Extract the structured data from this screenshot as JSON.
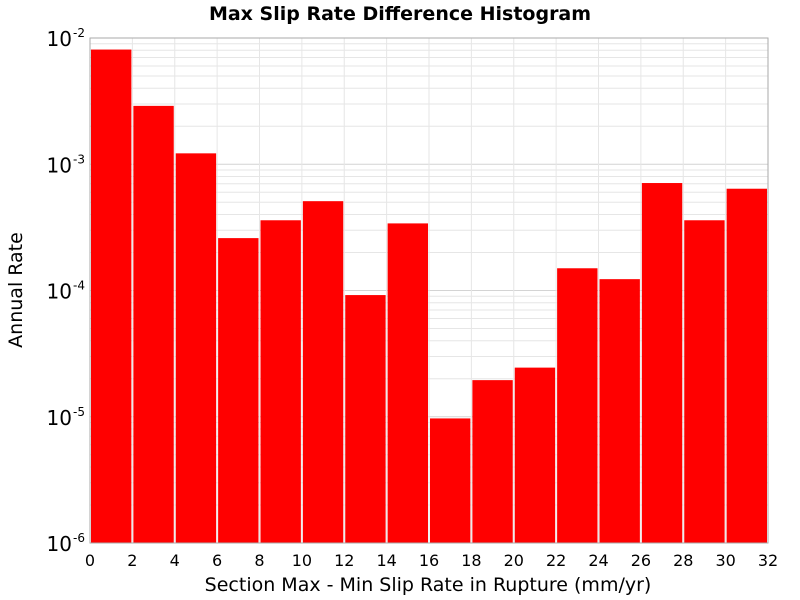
{
  "chart_data": {
    "type": "bar",
    "title": "Max Slip Rate Difference Histogram",
    "xlabel": "Section Max - Min Slip Rate in Rupture (mm/yr)",
    "ylabel": "Annual Rate",
    "x_scale": "linear",
    "y_scale": "log",
    "xlim": [
      0,
      32
    ],
    "ylim": [
      1e-06,
      0.01
    ],
    "grid": true,
    "bar_color": "#ff0000",
    "bin_width": 2,
    "bins": [
      {
        "x0": 0,
        "x1": 2,
        "value": 0.0081
      },
      {
        "x0": 2,
        "x1": 4,
        "value": 0.0029
      },
      {
        "x0": 4,
        "x1": 6,
        "value": 0.00122
      },
      {
        "x0": 6,
        "x1": 8,
        "value": 0.00026
      },
      {
        "x0": 8,
        "x1": 10,
        "value": 0.00036
      },
      {
        "x0": 10,
        "x1": 12,
        "value": 0.00051
      },
      {
        "x0": 12,
        "x1": 14,
        "value": 9.2e-05
      },
      {
        "x0": 14,
        "x1": 16,
        "value": 0.00034
      },
      {
        "x0": 16,
        "x1": 18,
        "value": 9.7e-06
      },
      {
        "x0": 18,
        "x1": 20,
        "value": 1.95e-05
      },
      {
        "x0": 20,
        "x1": 22,
        "value": 2.45e-05
      },
      {
        "x0": 22,
        "x1": 24,
        "value": 0.00015
      },
      {
        "x0": 24,
        "x1": 26,
        "value": 0.000123
      },
      {
        "x0": 26,
        "x1": 28,
        "value": 0.00071
      },
      {
        "x0": 28,
        "x1": 30,
        "value": 0.00036
      },
      {
        "x0": 30,
        "x1": 32,
        "value": 0.00064
      }
    ],
    "x_ticks": [
      "0",
      "2",
      "4",
      "6",
      "8",
      "10",
      "12",
      "14",
      "16",
      "18",
      "20",
      "22",
      "24",
      "26",
      "28",
      "30",
      "32"
    ],
    "y_ticks": [
      {
        "base": "10",
        "exp": "-6"
      },
      {
        "base": "10",
        "exp": "-5"
      },
      {
        "base": "10",
        "exp": "-4"
      },
      {
        "base": "10",
        "exp": "-3"
      },
      {
        "base": "10",
        "exp": "-2"
      }
    ]
  }
}
